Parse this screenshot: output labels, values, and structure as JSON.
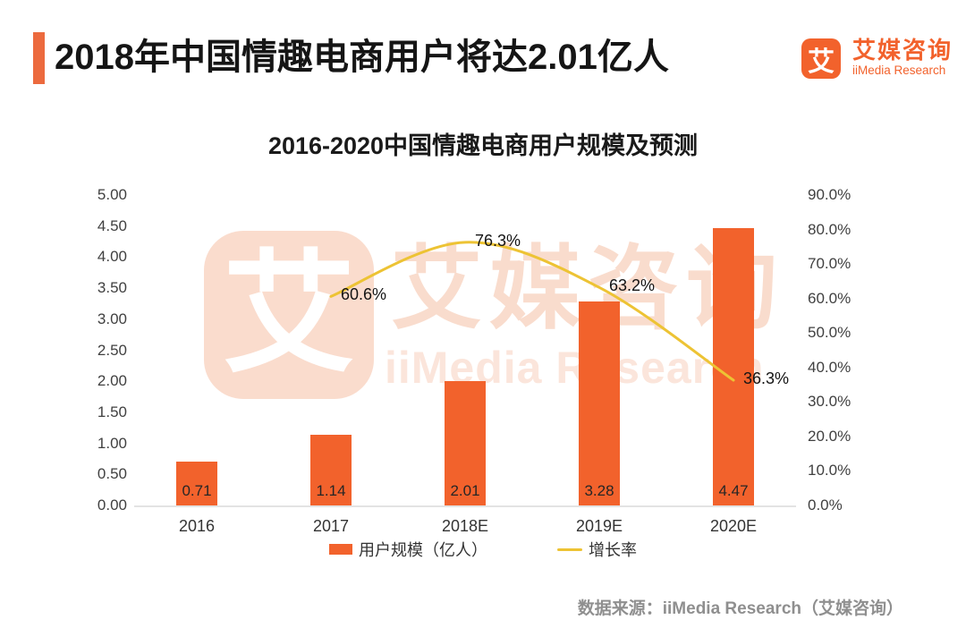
{
  "header": {
    "title": "2018年中国情趣电商用户将达2.01亿人",
    "accent_color": "#EC6A3E"
  },
  "brand": {
    "logo_char": "艾",
    "name_cn": "艾媒咨询",
    "name_en": "iiMedia Research",
    "color": "#F2622C"
  },
  "watermark": {
    "logo_char": "艾",
    "text_cn": "艾媒咨询",
    "text_en": "iiMedia Research",
    "tile_color": "#FADCCD",
    "text_cn_color": "#F9DCCD",
    "text_en_color": "#FBE5DB"
  },
  "chart_data": {
    "type": "bar",
    "title": "2016-2020中国情趣电商用户规模及预测",
    "categories": [
      "2016",
      "2017",
      "2018E",
      "2019E",
      "2020E"
    ],
    "series": [
      {
        "name": "用户规模（亿人）",
        "type": "bar",
        "color": "#F2622C",
        "values": [
          0.71,
          1.14,
          2.01,
          3.28,
          4.47
        ],
        "value_labels": [
          "0.71",
          "1.14",
          "2.01",
          "3.28",
          "4.47"
        ]
      },
      {
        "name": "增长率",
        "type": "line",
        "color": "#EDC334",
        "values": [
          null,
          60.6,
          76.3,
          63.2,
          36.3
        ],
        "point_labels": [
          "",
          "60.6%",
          "76.3%",
          "63.2%",
          "36.3%"
        ]
      }
    ],
    "left_axis": {
      "min": 0,
      "max": 5,
      "step": 0.5,
      "ticks": [
        "5.00",
        "4.50",
        "4.00",
        "3.50",
        "3.00",
        "2.50",
        "2.00",
        "1.50",
        "1.00",
        "0.50",
        "0.00"
      ]
    },
    "right_axis": {
      "min": 0,
      "max": 90,
      "step": 10,
      "ticks": [
        "90.0%",
        "80.0%",
        "70.0%",
        "60.0%",
        "50.0%",
        "40.0%",
        "30.0%",
        "20.0%",
        "10.0%",
        "0.0%"
      ]
    },
    "grid": false,
    "legend_position": "bottom"
  },
  "footer": {
    "source": "数据来源：iiMedia Research（艾媒咨询）"
  }
}
